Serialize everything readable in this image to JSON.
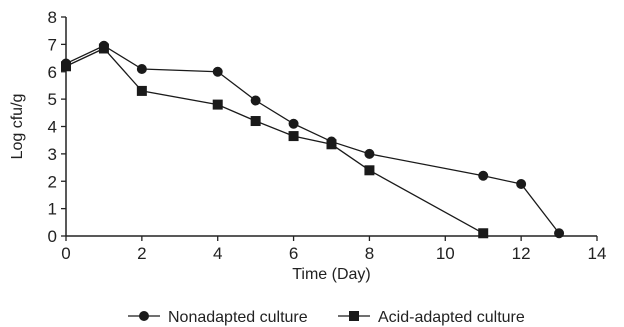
{
  "chart_data": {
    "type": "line",
    "title": "",
    "xlabel": "Time (Day)",
    "ylabel": "Log cfu/g",
    "xlim": [
      0,
      14
    ],
    "ylim": [
      0,
      8
    ],
    "x_ticks": [
      "0",
      "2",
      "4",
      "6",
      "8",
      "10",
      "12",
      "14"
    ],
    "y_ticks": [
      "0",
      "1",
      "2",
      "3",
      "4",
      "5",
      "6",
      "7",
      "8"
    ],
    "grid": false,
    "legend_position": "bottom",
    "series": [
      {
        "name": "Nonadapted culture",
        "marker": "circle",
        "color": "#1a1a1a",
        "x": [
          0,
          1,
          2,
          4,
          5,
          6,
          7,
          8,
          11,
          12,
          13
        ],
        "y": [
          6.3,
          6.95,
          6.1,
          6.0,
          4.95,
          4.1,
          3.45,
          3.0,
          2.2,
          1.9,
          0.1
        ]
      },
      {
        "name": "Acid-adapted culture",
        "marker": "square",
        "color": "#1a1a1a",
        "x": [
          0,
          1,
          2,
          4,
          5,
          6,
          7,
          8,
          11
        ],
        "y": [
          6.2,
          6.85,
          5.3,
          4.8,
          4.2,
          3.65,
          3.35,
          2.4,
          0.1
        ]
      }
    ]
  }
}
